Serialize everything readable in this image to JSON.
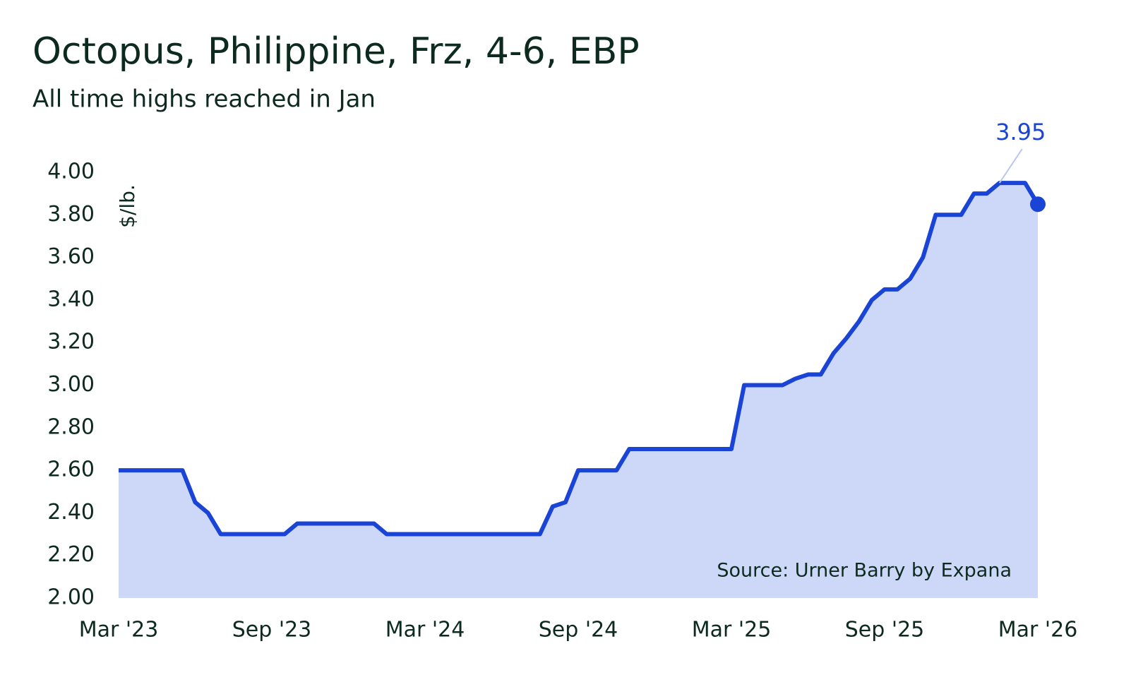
{
  "chart_data": {
    "type": "area",
    "title": "Octopus, Philippine, Frz, 4-6, EBP",
    "subtitle": "All time highs reached in Jan",
    "y_label": "$/lb.",
    "source": "Source: Urner Barry by Expana",
    "categories": [
      "Mar '23",
      null,
      null,
      null,
      null,
      null,
      null,
      null,
      null,
      null,
      null,
      null,
      "Sep '23",
      null,
      null,
      null,
      null,
      null,
      null,
      null,
      null,
      null,
      null,
      null,
      "Mar '24",
      null,
      null,
      null,
      null,
      null,
      null,
      null,
      null,
      null,
      null,
      null,
      "Sep '24",
      null,
      null,
      null,
      null,
      null,
      null,
      null,
      null,
      null,
      null,
      null,
      "Mar '25",
      null,
      null,
      null,
      null,
      null,
      null,
      null,
      null,
      null,
      null,
      null,
      "Sep '25",
      null,
      null,
      null,
      null,
      null,
      null,
      null,
      null,
      null,
      null,
      null,
      "Mar '26"
    ],
    "series": [
      {
        "name": "Octopus",
        "color": "#1a44d6",
        "fill": "#cdd8f8",
        "values": [
          2.6,
          2.6,
          2.6,
          2.6,
          2.6,
          2.6,
          2.45,
          2.4,
          2.3,
          2.3,
          2.3,
          2.3,
          2.3,
          2.3,
          2.35,
          2.35,
          2.35,
          2.35,
          2.35,
          2.35,
          2.35,
          2.3,
          2.3,
          2.3,
          2.3,
          2.3,
          2.3,
          2.3,
          2.3,
          2.3,
          2.3,
          2.3,
          2.3,
          2.3,
          2.43,
          2.45,
          2.6,
          2.6,
          2.6,
          2.6,
          2.7,
          2.7,
          2.7,
          2.7,
          2.7,
          2.7,
          2.7,
          2.7,
          2.7,
          3.0,
          3.0,
          3.0,
          3.0,
          3.03,
          3.05,
          3.05,
          3.15,
          3.22,
          3.3,
          3.4,
          3.45,
          3.45,
          3.5,
          3.6,
          3.8,
          3.8,
          3.8,
          3.9,
          3.9,
          3.95,
          3.95,
          3.95,
          3.85
        ]
      }
    ],
    "annotation": {
      "value": 3.95,
      "label": "3.95"
    },
    "ylim": [
      2.0,
      4.0
    ],
    "yticks": [
      {
        "value": 2.0,
        "label": "2.00"
      },
      {
        "value": 2.2,
        "label": "2.20"
      },
      {
        "value": 2.4,
        "label": "2.40"
      },
      {
        "value": 2.6,
        "label": "2.60"
      },
      {
        "value": 2.8,
        "label": "2.80"
      },
      {
        "value": 3.0,
        "label": "3.00"
      },
      {
        "value": 3.2,
        "label": "3.20"
      },
      {
        "value": 3.4,
        "label": "3.40"
      },
      {
        "value": 3.6,
        "label": "3.60"
      },
      {
        "value": 3.8,
        "label": "3.80"
      },
      {
        "value": 4.0,
        "label": "4.00"
      }
    ],
    "grid": false
  }
}
